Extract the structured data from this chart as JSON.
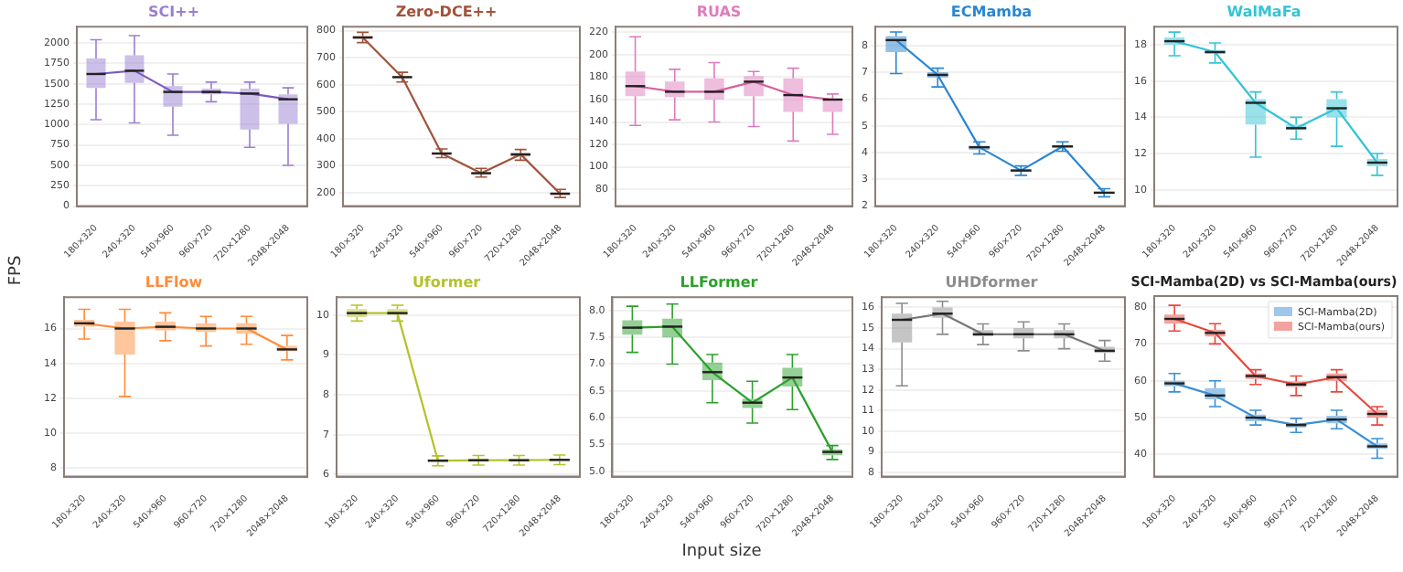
{
  "chart_data": [
    {
      "type": "box",
      "title": "SCI++",
      "categories": [
        "180×320",
        "240×320",
        "540×960",
        "960×720",
        "720×1280",
        "2048×2048"
      ],
      "ylim": [
        0,
        2200
      ],
      "yticks": [
        0,
        250,
        500,
        750,
        1000,
        1250,
        1500,
        1750,
        2000
      ],
      "grid": "y",
      "series": [
        {
          "type": "box",
          "color": "#9a7fd1",
          "boxes": [
            {
              "low": 1060,
              "q1": 1450,
              "median": 1620,
              "q3": 1810,
              "high": 2040
            },
            {
              "low": 1020,
              "q1": 1510,
              "median": 1660,
              "q3": 1850,
              "high": 2090
            },
            {
              "low": 870,
              "q1": 1220,
              "median": 1400,
              "q3": 1470,
              "high": 1620
            },
            {
              "low": 1280,
              "q1": 1370,
              "median": 1400,
              "q3": 1440,
              "high": 1520
            },
            {
              "low": 720,
              "q1": 940,
              "median": 1380,
              "q3": 1440,
              "high": 1520
            },
            {
              "low": 500,
              "q1": 1010,
              "median": 1310,
              "q3": 1370,
              "high": 1450
            }
          ]
        },
        {
          "type": "line",
          "color": "#7b5bbf",
          "values": [
            1620,
            1660,
            1400,
            1400,
            1380,
            1310
          ]
        }
      ]
    },
    {
      "type": "box",
      "title": "Zero-DCE++",
      "categories": [
        "180×320",
        "240×320",
        "540×960",
        "960×720",
        "720×1280",
        "2048×2048"
      ],
      "ylim": [
        150,
        815
      ],
      "yticks": [
        200,
        300,
        400,
        500,
        600,
        700,
        800
      ],
      "grid": "y",
      "series": [
        {
          "type": "box",
          "color": "#a0523a",
          "boxes": [
            {
              "low": 756,
              "q1": 770,
              "median": 775,
              "q3": 780,
              "high": 794
            },
            {
              "low": 610,
              "q1": 624,
              "median": 628,
              "q3": 632,
              "high": 646
            },
            {
              "low": 330,
              "q1": 341,
              "median": 345,
              "q3": 349,
              "high": 362
            },
            {
              "low": 258,
              "q1": 268,
              "median": 272,
              "q3": 276,
              "high": 290
            },
            {
              "low": 320,
              "q1": 334,
              "median": 342,
              "q3": 346,
              "high": 360
            },
            {
              "low": 182,
              "q1": 192,
              "median": 196,
              "q3": 200,
              "high": 212
            }
          ]
        },
        {
          "type": "line",
          "color": "#a0523a",
          "values": [
            775,
            628,
            345,
            272,
            342,
            196
          ]
        }
      ]
    },
    {
      "type": "box",
      "title": "RUAS",
      "categories": [
        "180×320",
        "240×320",
        "540×960",
        "960×720",
        "720×1280",
        "2048×2048"
      ],
      "ylim": [
        65,
        225
      ],
      "yticks": [
        80,
        100,
        120,
        140,
        160,
        180,
        200,
        220
      ],
      "grid": "y",
      "series": [
        {
          "type": "box",
          "color": "#e07bbd",
          "boxes": [
            {
              "low": 137,
              "q1": 163,
              "median": 172,
              "q3": 185,
              "high": 216
            },
            {
              "low": 142,
              "q1": 162,
              "median": 167,
              "q3": 176,
              "high": 187
            },
            {
              "low": 140,
              "q1": 160,
              "median": 167,
              "q3": 179,
              "high": 193
            },
            {
              "low": 136,
              "q1": 163,
              "median": 176,
              "q3": 181,
              "high": 185
            },
            {
              "low": 123,
              "q1": 149,
              "median": 164,
              "q3": 179,
              "high": 188
            },
            {
              "low": 129,
              "q1": 149,
              "median": 160,
              "q3": 161,
              "high": 165
            }
          ]
        },
        {
          "type": "line",
          "color": "#d8609f",
          "values": [
            172,
            167,
            167,
            176,
            164,
            160
          ]
        }
      ]
    },
    {
      "type": "box",
      "title": "ECMamba",
      "categories": [
        "180×320",
        "240×320",
        "540×960",
        "960×720",
        "720×1280",
        "2048×2048"
      ],
      "ylim": [
        2,
        8.7
      ],
      "yticks": [
        2,
        3,
        4,
        5,
        6,
        7,
        8
      ],
      "grid": "y",
      "series": [
        {
          "type": "box",
          "color": "#2a86d0",
          "boxes": [
            {
              "low": 6.95,
              "q1": 7.75,
              "median": 8.2,
              "q3": 8.35,
              "high": 8.5
            },
            {
              "low": 6.45,
              "q1": 6.8,
              "median": 6.9,
              "q3": 7.0,
              "high": 7.15
            },
            {
              "low": 3.95,
              "q1": 4.1,
              "median": 4.2,
              "q3": 4.25,
              "high": 4.4
            },
            {
              "low": 3.15,
              "q1": 3.29,
              "median": 3.33,
              "q3": 3.37,
              "high": 3.5
            },
            {
              "low": 4.05,
              "q1": 4.19,
              "median": 4.23,
              "q3": 4.27,
              "high": 4.4
            },
            {
              "low": 2.35,
              "q1": 2.46,
              "median": 2.5,
              "q3": 2.54,
              "high": 2.65
            }
          ]
        },
        {
          "type": "line",
          "color": "#2a86d0",
          "values": [
            8.2,
            6.9,
            4.2,
            3.33,
            4.23,
            2.5
          ]
        }
      ]
    },
    {
      "type": "box",
      "title": "WalMaFa",
      "categories": [
        "180×320",
        "240×320",
        "540×960",
        "960×720",
        "720×1280",
        "2048×2048"
      ],
      "ylim": [
        9.1,
        19
      ],
      "yticks": [
        10,
        12,
        14,
        16,
        18
      ],
      "grid": "y",
      "series": [
        {
          "type": "box",
          "color": "#35c3d6",
          "boxes": [
            {
              "low": 17.4,
              "q1": 18.0,
              "median": 18.2,
              "q3": 18.4,
              "high": 18.7
            },
            {
              "low": 17.0,
              "q1": 17.5,
              "median": 17.6,
              "q3": 17.7,
              "high": 18.1
            },
            {
              "low": 11.8,
              "q1": 13.6,
              "median": 14.8,
              "q3": 15.0,
              "high": 15.4
            },
            {
              "low": 12.8,
              "q1": 13.3,
              "median": 13.4,
              "q3": 13.6,
              "high": 14.0
            },
            {
              "low": 12.4,
              "q1": 14.0,
              "median": 14.5,
              "q3": 15.0,
              "high": 15.4
            },
            {
              "low": 10.8,
              "q1": 11.3,
              "median": 11.5,
              "q3": 11.7,
              "high": 12.0
            }
          ]
        },
        {
          "type": "line",
          "color": "#35c3d6",
          "values": [
            18.2,
            17.6,
            14.8,
            13.4,
            14.5,
            11.5
          ]
        }
      ]
    },
    {
      "type": "box",
      "title": "LLFlow",
      "ylabel": "FPS",
      "categories": [
        "180×320",
        "240×320",
        "540×960",
        "960×720",
        "720×1280",
        "2048×2048"
      ],
      "ylim": [
        7.5,
        17.8
      ],
      "yticks": [
        8,
        10,
        12,
        14,
        16
      ],
      "grid": "y",
      "series": [
        {
          "type": "box",
          "color": "#ff8c3a",
          "boxes": [
            {
              "low": 15.4,
              "q1": 16.1,
              "median": 16.3,
              "q3": 16.5,
              "high": 17.1
            },
            {
              "low": 12.1,
              "q1": 14.5,
              "median": 16.0,
              "q3": 16.4,
              "high": 17.1
            },
            {
              "low": 15.3,
              "q1": 15.9,
              "median": 16.1,
              "q3": 16.4,
              "high": 16.9
            },
            {
              "low": 15.0,
              "q1": 15.8,
              "median": 16.0,
              "q3": 16.3,
              "high": 16.7
            },
            {
              "low": 15.1,
              "q1": 15.7,
              "median": 16.0,
              "q3": 16.3,
              "high": 16.7
            },
            {
              "low": 14.2,
              "q1": 14.7,
              "median": 14.8,
              "q3": 15.0,
              "high": 15.6
            }
          ]
        },
        {
          "type": "line",
          "color": "#ff8c3a",
          "values": [
            16.3,
            16.0,
            16.1,
            16.0,
            16.0,
            14.8
          ]
        }
      ]
    },
    {
      "type": "box",
      "title": "Uformer",
      "categories": [
        "180×320",
        "240×320",
        "540×960",
        "960×720",
        "720×1280",
        "2048×2048"
      ],
      "ylim": [
        5.95,
        10.45
      ],
      "yticks": [
        6,
        7,
        8,
        9,
        10
      ],
      "grid": "y",
      "series": [
        {
          "type": "box",
          "color": "#b5c22b",
          "boxes": [
            {
              "low": 9.85,
              "q1": 9.95,
              "median": 10.05,
              "q3": 10.15,
              "high": 10.25
            },
            {
              "low": 9.85,
              "q1": 10.0,
              "median": 10.05,
              "q3": 10.15,
              "high": 10.25
            },
            {
              "low": 6.22,
              "q1": 6.32,
              "median": 6.35,
              "q3": 6.38,
              "high": 6.47
            },
            {
              "low": 6.24,
              "q1": 6.33,
              "median": 6.36,
              "q3": 6.39,
              "high": 6.48
            },
            {
              "low": 6.24,
              "q1": 6.33,
              "median": 6.36,
              "q3": 6.39,
              "high": 6.48
            },
            {
              "low": 6.25,
              "q1": 6.34,
              "median": 6.37,
              "q3": 6.4,
              "high": 6.49
            }
          ]
        },
        {
          "type": "line",
          "color": "#b5c22b",
          "values": [
            10.05,
            10.05,
            6.35,
            6.36,
            6.36,
            6.37
          ]
        }
      ]
    },
    {
      "type": "box",
      "title": "LLFormer",
      "xlabel": "Input size",
      "categories": [
        "180×320",
        "240×320",
        "540×960",
        "960×720",
        "720×1280",
        "2048×2048"
      ],
      "ylim": [
        4.9,
        8.25
      ],
      "yticks": [
        {
          "value": 5,
          "label": "5.0"
        },
        5.5,
        {
          "value": 6,
          "label": "6.0"
        },
        6.5,
        {
          "value": 7,
          "label": "7.0"
        },
        7.5,
        {
          "value": 8,
          "label": "8.0"
        }
      ],
      "grid": "y",
      "series": [
        {
          "type": "box",
          "color": "#2ca02c",
          "boxes": [
            {
              "low": 7.22,
              "q1": 7.55,
              "median": 7.68,
              "q3": 7.82,
              "high": 8.08
            },
            {
              "low": 7.0,
              "q1": 7.5,
              "median": 7.7,
              "q3": 7.85,
              "high": 8.12
            },
            {
              "low": 6.28,
              "q1": 6.7,
              "median": 6.85,
              "q3": 7.03,
              "high": 7.18
            },
            {
              "low": 5.9,
              "q1": 6.18,
              "median": 6.28,
              "q3": 6.35,
              "high": 6.68
            },
            {
              "low": 6.15,
              "q1": 6.58,
              "median": 6.75,
              "q3": 6.93,
              "high": 7.18
            },
            {
              "low": 5.22,
              "q1": 5.3,
              "median": 5.36,
              "q3": 5.41,
              "high": 5.48
            }
          ]
        },
        {
          "type": "line",
          "color": "#2ca02c",
          "values": [
            7.68,
            7.7,
            6.85,
            6.28,
            6.75,
            5.36
          ]
        }
      ]
    },
    {
      "type": "box",
      "title": "UHDformer",
      "categories": [
        "180×320",
        "240×320",
        "540×960",
        "960×720",
        "720×1280",
        "2048×2048"
      ],
      "ylim": [
        7.8,
        16.5
      ],
      "yticks": [
        8,
        9,
        10,
        11,
        12,
        13,
        14,
        15,
        16
      ],
      "grid": "y",
      "series": [
        {
          "type": "box",
          "color": "#8c8c8c",
          "boxes": [
            {
              "low": 12.2,
              "q1": 14.3,
              "median": 15.4,
              "q3": 15.7,
              "high": 16.2
            },
            {
              "low": 14.7,
              "q1": 15.5,
              "median": 15.7,
              "q3": 16.0,
              "high": 16.3
            },
            {
              "low": 14.2,
              "q1": 14.6,
              "median": 14.7,
              "q3": 14.9,
              "high": 15.2
            },
            {
              "low": 13.9,
              "q1": 14.5,
              "median": 14.7,
              "q3": 15.0,
              "high": 15.3
            },
            {
              "low": 14.0,
              "q1": 14.5,
              "median": 14.7,
              "q3": 14.9,
              "high": 15.2
            },
            {
              "low": 13.4,
              "q1": 13.8,
              "median": 13.9,
              "q3": 14.1,
              "high": 14.4
            }
          ]
        },
        {
          "type": "line",
          "color": "#777777",
          "values": [
            15.4,
            15.7,
            14.7,
            14.7,
            14.7,
            13.9
          ]
        }
      ]
    },
    {
      "type": "box",
      "title": "SCI-Mamba(2D) vs SCI-Mamba(ours)",
      "categories": [
        "180×320",
        "240×320",
        "540×960",
        "960×720",
        "720×1280",
        "2048×2048"
      ],
      "ylim": [
        34,
        83
      ],
      "yticks": [
        40,
        50,
        60,
        70,
        80
      ],
      "grid": "y",
      "legend": "top right",
      "series": [
        {
          "type": "box",
          "name": "SCI-Mamba(2D)",
          "color": "#3d8fd6",
          "boxes": [
            {
              "low": 57,
              "q1": 58.5,
              "median": 59.3,
              "q3": 60,
              "high": 62
            },
            {
              "low": 53,
              "q1": 55,
              "median": 56,
              "q3": 58,
              "high": 60
            },
            {
              "low": 48,
              "q1": 49,
              "median": 50,
              "q3": 50.8,
              "high": 52
            },
            {
              "low": 46,
              "q1": 47.3,
              "median": 48,
              "q3": 48.5,
              "high": 49.8
            },
            {
              "low": 47,
              "q1": 48.5,
              "median": 49.5,
              "q3": 50.5,
              "high": 52
            },
            {
              "low": 39,
              "q1": 41.5,
              "median": 42.2,
              "q3": 43,
              "high": 44.3
            }
          ]
        },
        {
          "type": "box",
          "name": "SCI-Mamba(ours)",
          "color": "#e8473c",
          "boxes": [
            {
              "low": 73.5,
              "q1": 75.5,
              "median": 76.8,
              "q3": 78,
              "high": 80.5
            },
            {
              "low": 70,
              "q1": 72,
              "median": 73,
              "q3": 73.8,
              "high": 75.5
            },
            {
              "low": 59,
              "q1": 60.5,
              "median": 61.3,
              "q3": 62,
              "high": 63
            },
            {
              "low": 56,
              "q1": 58.3,
              "median": 59,
              "q3": 59.8,
              "high": 61.3
            },
            {
              "low": 57,
              "q1": 60,
              "median": 61,
              "q3": 62,
              "high": 63
            },
            {
              "low": 48,
              "q1": 50,
              "median": 51,
              "q3": 52,
              "high": 53
            }
          ]
        },
        {
          "type": "line",
          "color": "#3d8fd6",
          "values": [
            59.3,
            56,
            50,
            48,
            49.5,
            42.2
          ]
        },
        {
          "type": "line",
          "color": "#e8473c",
          "values": [
            76.8,
            73,
            61.3,
            59,
            61,
            51
          ]
        }
      ]
    }
  ]
}
